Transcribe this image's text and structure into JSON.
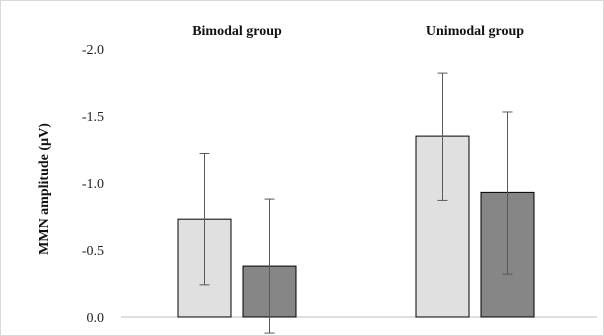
{
  "chart_data": {
    "type": "bar",
    "title": "",
    "xlabel": "",
    "ylabel": "MMN amplitude (µV)",
    "y_axis_reversed": true,
    "ylim": [
      0.0,
      -2.0
    ],
    "yticks": [
      0.0,
      -0.5,
      -1.0,
      -1.5,
      -2.0
    ],
    "ytick_labels": [
      "0.0",
      "-0.5",
      "-1.0",
      "-1.5",
      "-2.0"
    ],
    "grid": false,
    "legend": "none",
    "groups": [
      {
        "label": "Bimodal group",
        "bars": [
          {
            "value": -0.73,
            "error_low": -0.24,
            "error_high": -1.22,
            "color": "#e0e0e0"
          },
          {
            "value": -0.38,
            "error_low": 0.12,
            "error_high": -0.88,
            "color": "#868686"
          }
        ]
      },
      {
        "label": "Unimodal group",
        "bars": [
          {
            "value": -1.35,
            "error_low": -0.87,
            "error_high": -1.82,
            "color": "#e0e0e0"
          },
          {
            "value": -0.93,
            "error_low": -0.32,
            "error_high": -1.53,
            "color": "#868686"
          }
        ]
      }
    ]
  }
}
